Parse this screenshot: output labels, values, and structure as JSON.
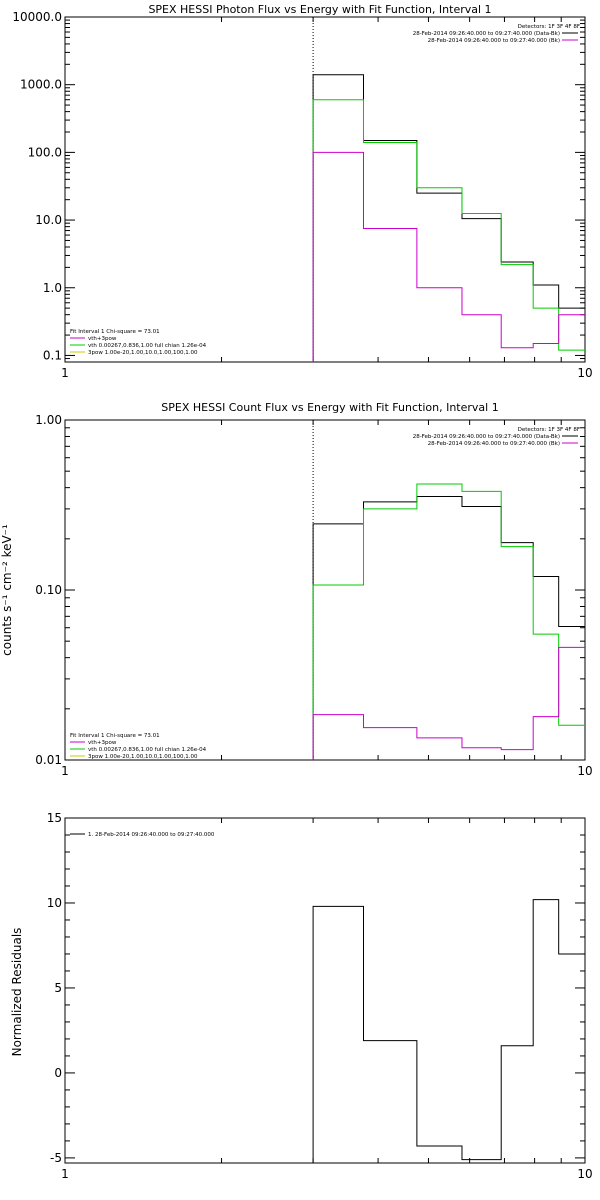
{
  "chart_data": [
    {
      "type": "line",
      "title": "SPEX HESSI Photon Flux vs Energy with Fit Function, Interval 1",
      "xlabel": "",
      "ylabel": "",
      "xscale": "log",
      "yscale": "log",
      "xlim": [
        1,
        10
      ],
      "ylim": [
        0.08,
        10000
      ],
      "x_ticks": [
        1,
        10
      ],
      "x_tick_labels": [
        "1",
        "10"
      ],
      "y_ticks": [
        0.1,
        1,
        10,
        100,
        1000,
        10000
      ],
      "y_tick_labels": [
        "0.1",
        "1.0",
        "10.0",
        "100.0",
        "1000.0",
        "10000.0"
      ],
      "vline_x": 3.0,
      "detectors_label": "Detectors: 1F 3F 4F 8F",
      "legend_right": [
        {
          "text": "28-Feb-2014 09:26:40.000 to 09:27:40.000 (Data-Bk)",
          "color": "#000000"
        },
        {
          "text": "28-Feb-2014 09:26:40.000 to 09:27:40.000 (Bk)",
          "color": "#cc00cc"
        }
      ],
      "legend_left_header": "Fit Interval 1   Chi-square = 73.01",
      "legend_left": [
        {
          "text": "vth+3pow",
          "color": "#cc00cc"
        },
        {
          "text": "vth 0.00267,0.836,1.00  full chian 1.26e-04",
          "color": "#00cc00"
        },
        {
          "text": "3pow 1.00e-20,1.00,10.0,1.00,100,1.00",
          "color": "#cccc00"
        }
      ],
      "bin_edges": [
        3.0,
        3.75,
        4.75,
        5.8,
        6.9,
        7.95,
        8.9,
        10.0
      ],
      "series": [
        {
          "color": "#000000",
          "values": [
            1400,
            150,
            25,
            10.5,
            2.4,
            1.1,
            0.5
          ]
        },
        {
          "color": "#00cc00",
          "values": [
            600,
            140,
            30,
            12.5,
            2.2,
            0.5,
            0.12
          ]
        },
        {
          "color": "#cc00cc",
          "values": [
            100,
            7.5,
            1.0,
            0.4,
            0.13,
            0.15,
            0.4
          ]
        }
      ]
    },
    {
      "type": "line",
      "title": "SPEX HESSI Count Flux vs Energy with Fit Function, Interval 1",
      "xlabel": "",
      "ylabel": "counts s⁻¹ cm⁻² keV⁻¹",
      "xscale": "log",
      "yscale": "log",
      "xlim": [
        1,
        10
      ],
      "ylim": [
        0.01,
        1.0
      ],
      "x_ticks": [
        1,
        10
      ],
      "x_tick_labels": [
        "1",
        "10"
      ],
      "y_ticks": [
        0.01,
        0.1,
        1.0
      ],
      "y_tick_labels": [
        "0.01",
        "0.10",
        "1.00"
      ],
      "vline_x": 3.0,
      "detectors_label": "Detectors: 1F 3F 4F 8F",
      "legend_right": [
        {
          "text": "28-Feb-2014 09:26:40.000 to 09:27:40.000 (Data-Bk)",
          "color": "#000000"
        },
        {
          "text": "28-Feb-2014 09:26:40.000 to 09:27:40.000 (Bk)",
          "color": "#cc00cc"
        }
      ],
      "legend_left_header": "Fit Interval 1   Chi-square = 73.01",
      "legend_left": [
        {
          "text": "vth+3pow",
          "color": "#cc00cc"
        },
        {
          "text": "vth 0.00267,0.836,1.00  full chian 1.26e-04",
          "color": "#00cc00"
        },
        {
          "text": "3pow 1.00e-20,1.00,10.0,1.00,100,1.00",
          "color": "#cccc00"
        }
      ],
      "bin_edges": [
        3.0,
        3.75,
        4.75,
        5.8,
        6.9,
        7.95,
        8.9,
        10.0
      ],
      "series": [
        {
          "color": "#000000",
          "values": [
            0.245,
            0.33,
            0.355,
            0.31,
            0.19,
            0.12,
            0.061
          ]
        },
        {
          "color": "#00cc00",
          "values": [
            0.107,
            0.3,
            0.42,
            0.38,
            0.18,
            0.055,
            0.016
          ]
        },
        {
          "color": "#cc00cc",
          "values": [
            0.0185,
            0.0155,
            0.0135,
            0.0118,
            0.0115,
            0.018,
            0.046
          ]
        }
      ]
    },
    {
      "type": "line",
      "title": "",
      "xlabel": "",
      "ylabel": "Normalized Residuals",
      "xscale": "log",
      "yscale": "linear",
      "xlim": [
        1,
        10
      ],
      "ylim": [
        -5.3,
        15
      ],
      "x_ticks": [
        1,
        10
      ],
      "x_tick_labels": [
        "1",
        "10"
      ],
      "y_ticks": [
        -5,
        0,
        5,
        10,
        15
      ],
      "y_tick_labels": [
        "-5",
        "0",
        "5",
        "10",
        "15"
      ],
      "legend_left_header": "",
      "legend_right": [],
      "legend_left": [
        {
          "text": "1. 28-Feb-2014 09:26:40.000 to 09:27:40.000",
          "color": "#000000"
        }
      ],
      "bin_edges": [
        3.0,
        3.75,
        4.75,
        5.8,
        6.9,
        7.95,
        8.9,
        10.0
      ],
      "series": [
        {
          "color": "#000000",
          "values": [
            9.8,
            1.9,
            -4.3,
            -5.1,
            1.6,
            10.2,
            7.0
          ]
        }
      ]
    }
  ]
}
